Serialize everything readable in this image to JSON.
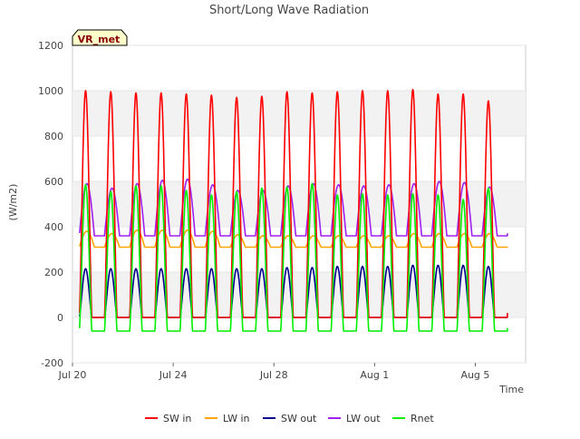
{
  "chart_data": {
    "type": "line",
    "title": "Short/Long Wave Radiation",
    "xlabel": "Time",
    "ylabel": "(W/m2)",
    "station_label": "VR_met",
    "x_unit": "days since Jul 20",
    "xlim": [
      0,
      18
    ],
    "ylim": [
      -200,
      1200
    ],
    "yticks": [
      -200,
      0,
      200,
      400,
      600,
      800,
      1000,
      1200
    ],
    "xticks": [
      {
        "value": 0,
        "label": "Jul 20"
      },
      {
        "value": 4,
        "label": "Jul 24"
      },
      {
        "value": 8,
        "label": "Jul 28"
      },
      {
        "value": 12,
        "label": "Aug 1"
      },
      {
        "value": 16,
        "label": "Aug 5"
      }
    ],
    "grid": "alternating horizontal bands",
    "legend_position": "bottom",
    "data_start": 0.28,
    "data_end": 17.28,
    "daily_peak_day_offset": 0.52,
    "daily_peaks": {
      "SW in": [
        1000,
        995,
        990,
        990,
        985,
        980,
        970,
        975,
        995,
        990,
        995,
        1000,
        1000,
        1005,
        985,
        985,
        955
      ],
      "LW in": [
        380,
        370,
        385,
        385,
        385,
        380,
        365,
        360,
        360,
        360,
        360,
        360,
        360,
        370,
        370,
        370,
        370
      ],
      "SW out": [
        215,
        215,
        215,
        215,
        215,
        215,
        215,
        215,
        220,
        220,
        225,
        225,
        225,
        230,
        230,
        230,
        225
      ],
      "LW out": [
        590,
        570,
        590,
        605,
        610,
        585,
        560,
        560,
        580,
        590,
        585,
        580,
        585,
        590,
        600,
        595,
        575
      ],
      "Rnet": [
        585,
        555,
        580,
        580,
        560,
        540,
        555,
        570,
        575,
        590,
        540,
        545,
        540,
        545,
        540,
        520,
        570
      ]
    },
    "night_levels": {
      "SW in": 0,
      "LW in": 310,
      "SW out": 0,
      "LW out": 360,
      "Rnet": -60
    },
    "series": [
      {
        "name": "SW in",
        "color": "#ff0000"
      },
      {
        "name": "LW in",
        "color": "#ffa500"
      },
      {
        "name": "SW out",
        "color": "#00008b"
      },
      {
        "name": "LW out",
        "color": "#a020f0"
      },
      {
        "name": "Rnet",
        "color": "#00ee00"
      }
    ]
  }
}
